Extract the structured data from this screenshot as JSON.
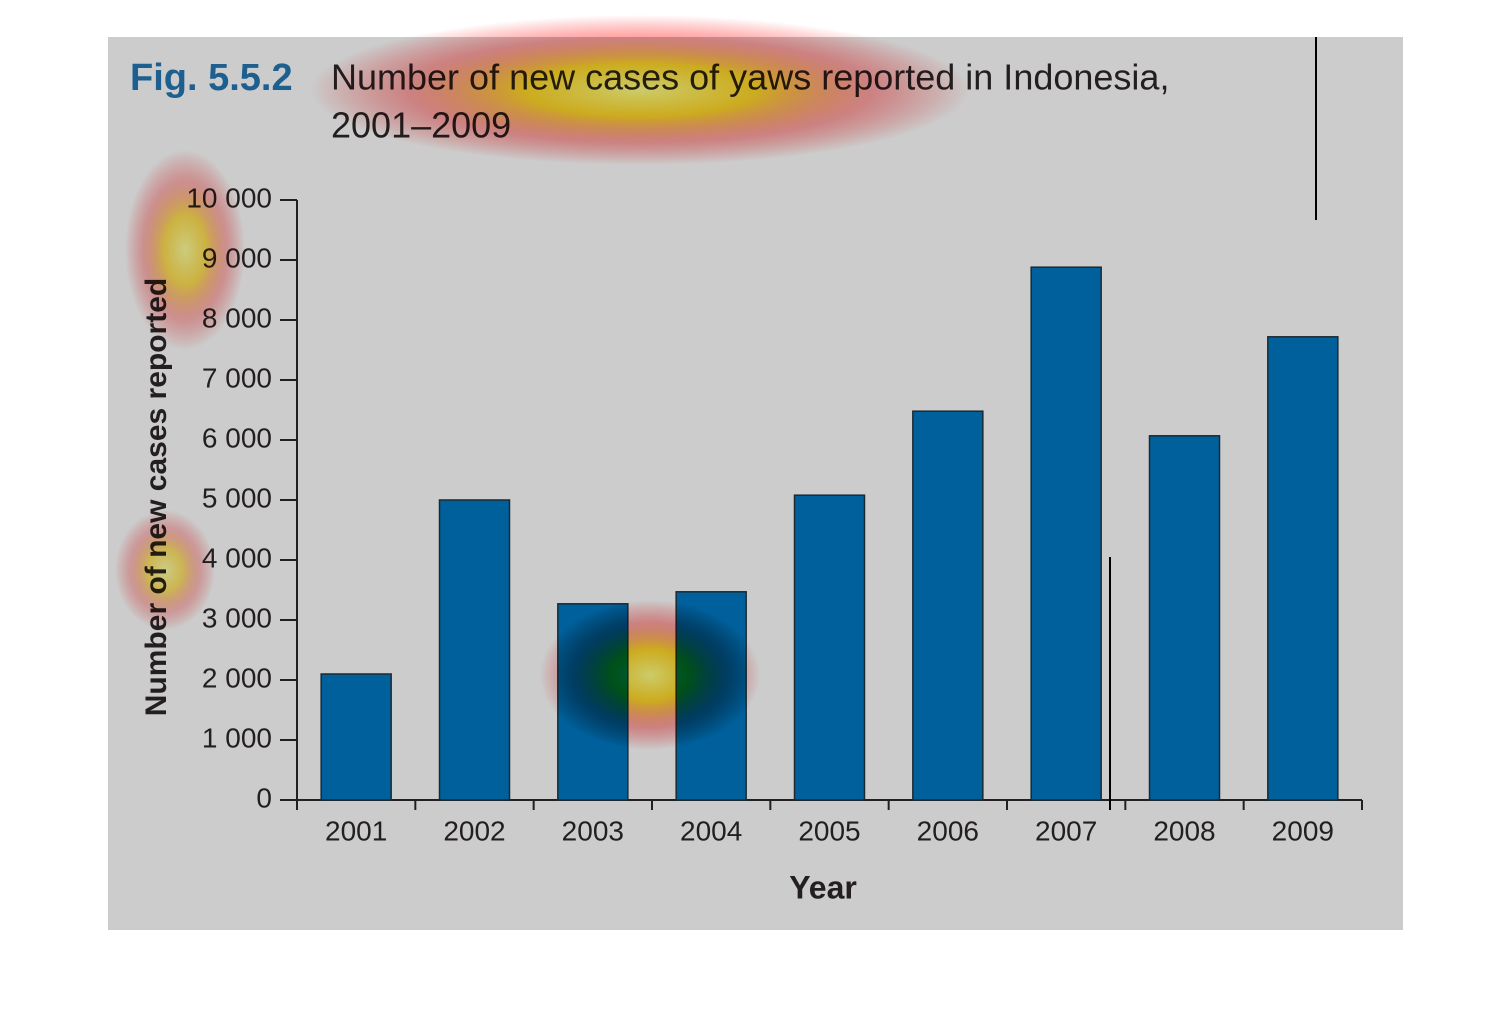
{
  "chart_data": {
    "type": "bar",
    "figure_label": "Fig. 5.5.2",
    "title_lines": [
      "Number of new cases of yaws reported in Indonesia,",
      "2001–2009"
    ],
    "x_label": "Year",
    "y_label": "Number of new cases reported",
    "categories": [
      "2001",
      "2002",
      "2003",
      "2004",
      "2005",
      "2006",
      "2007",
      "2008",
      "2009"
    ],
    "values": [
      2100,
      5000,
      3270,
      3470,
      5080,
      6480,
      8880,
      6070,
      7720
    ],
    "color": "#00609c",
    "ylim": [
      0,
      10000
    ],
    "yticks": [
      0,
      {
        "value": 1000,
        "label": "1 000"
      },
      {
        "value": 2000,
        "label": "2 000"
      },
      {
        "value": 3000,
        "label": "3 000"
      },
      {
        "value": 4000,
        "label": "4 000"
      },
      {
        "value": 5000,
        "label": "5 000"
      },
      {
        "value": 6000,
        "label": "6 000"
      },
      {
        "value": 7000,
        "label": "7 000"
      },
      {
        "value": 8000,
        "label": "8 000"
      },
      {
        "value": 9000,
        "label": "9 000"
      },
      {
        "value": 10000,
        "label": "10 000"
      }
    ],
    "grid": false
  }
}
